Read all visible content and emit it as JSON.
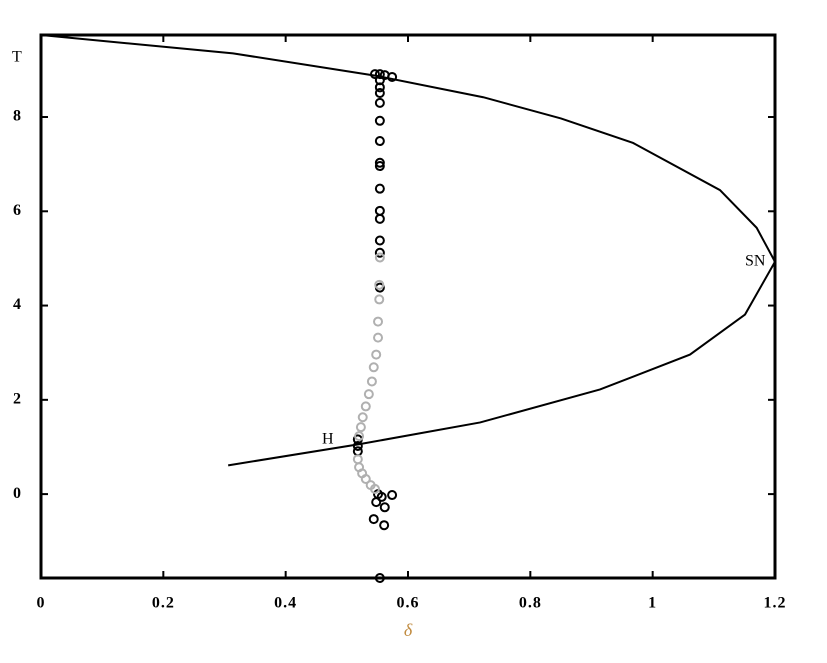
{
  "chart_data": {
    "type": "scatter",
    "x_label": "δ",
    "y_label": "T",
    "annotations": [
      "H",
      "SN"
    ],
    "xlim": [
      0,
      1.2
    ],
    "ylim": [
      -1.78,
      9.74
    ],
    "xticks": [
      0,
      0.2,
      0.4,
      0.6,
      0.8,
      1,
      1.2
    ],
    "yticks": [
      0,
      2,
      4,
      6,
      8
    ],
    "series": [
      {
        "type": "line",
        "color": "#000000",
        "x": [
          0,
          0.314,
          0.55,
          0.723,
          0.85,
          0.968,
          1.11,
          1.17,
          1.2,
          1.151,
          1.061,
          0.914,
          0.718,
          0.521,
          0.306
        ],
        "values": [
          9.74,
          9.35,
          8.87,
          8.42,
          7.97,
          7.45,
          6.45,
          5.65,
          4.93,
          3.81,
          2.96,
          2.22,
          1.52,
          1.06,
          0.61
        ]
      },
      {
        "type": "scatter",
        "color": "#000000",
        "x": [
          0.546,
          0.554,
          0.562,
          0.574,
          0.554,
          0.554,
          0.554,
          0.554,
          0.554,
          0.554,
          0.554,
          0.554,
          0.554,
          0.554,
          0.554,
          0.554,
          0.554,
          0.554,
          0.518,
          0.518,
          0.518,
          0.551,
          0.557,
          0.574,
          0.548,
          0.562,
          0.544,
          0.561,
          0.554
        ],
        "values": [
          8.91,
          8.91,
          8.89,
          8.85,
          8.78,
          8.63,
          8.51,
          8.3,
          7.92,
          7.49,
          7.03,
          6.96,
          6.48,
          6.01,
          5.84,
          5.38,
          5.12,
          4.38,
          1.16,
          1.02,
          0.91,
          0,
          -0.06,
          -0.02,
          -0.17,
          -0.28,
          -0.53,
          -0.66,
          -1.78
        ]
      },
      {
        "type": "scatter",
        "color": "#b0b0b0",
        "x": [
          0.554,
          0.553,
          0.553,
          0.551,
          0.551,
          0.548,
          0.544,
          0.541,
          0.536,
          0.531,
          0.526,
          0.523,
          0.52,
          0.518,
          0.52,
          0.525,
          0.531,
          0.539,
          0.546
        ],
        "values": [
          5.02,
          4.44,
          4.13,
          3.66,
          3.32,
          2.96,
          2.69,
          2.39,
          2.12,
          1.86,
          1.63,
          1.42,
          1.23,
          0.74,
          0.57,
          0.44,
          0.32,
          0.19,
          0.11
        ]
      }
    ]
  }
}
